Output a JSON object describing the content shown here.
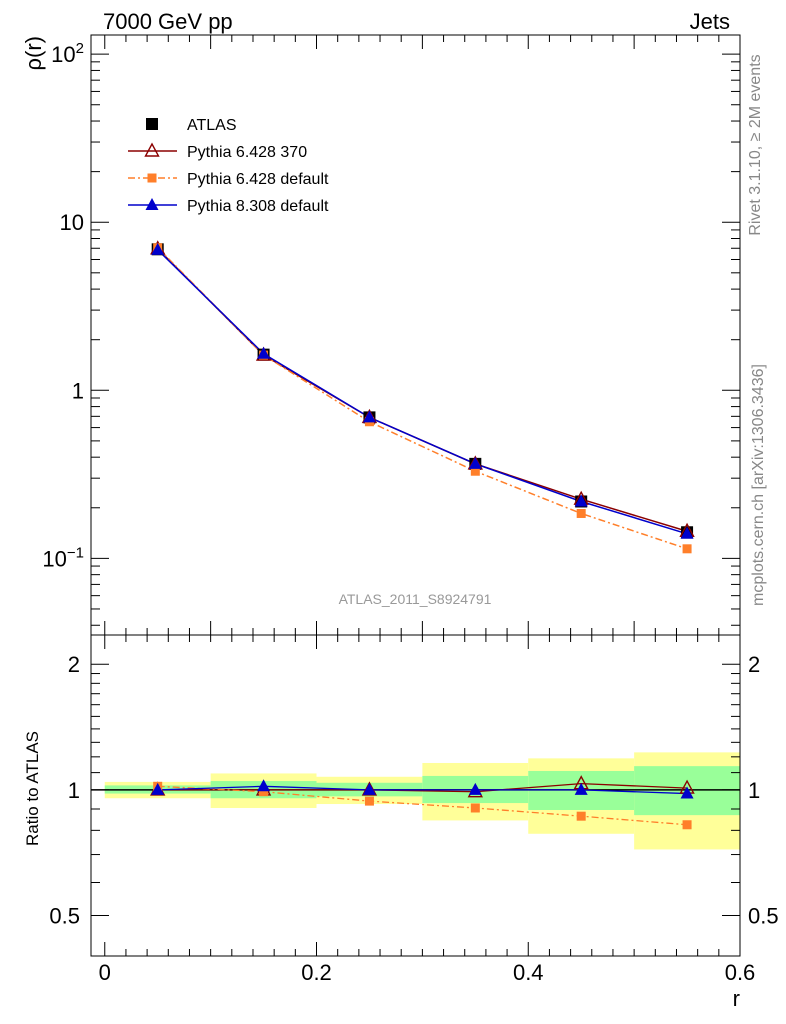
{
  "header": {
    "left_label": "7000 GeV pp",
    "right_label": "Jets"
  },
  "side_labels": {
    "rivet": "Rivet 3.1.10, ≥ 2M events",
    "mcplots": "mcplots.cern.ch [arXiv:1306.3436]"
  },
  "analysis_label": "ATLAS_2011_S8924791",
  "chart_data": [
    {
      "type": "line",
      "panel": "main",
      "ylabel": "ρ(r)",
      "yscale": "log",
      "ylim": [
        0.035,
        130
      ],
      "xlim": [
        -0.013,
        0.6
      ],
      "ytick_labels": [
        {
          "value": 100,
          "base": "10",
          "exp": "2"
        },
        {
          "value": 10,
          "base": "10",
          "exp": ""
        },
        {
          "value": 1,
          "base": "1",
          "exp": ""
        },
        {
          "value": 0.1,
          "base": "10",
          "exp": "−1"
        }
      ],
      "legend_position": "top-left",
      "x": [
        0.05,
        0.15,
        0.25,
        0.35,
        0.45,
        0.55
      ],
      "series": [
        {
          "name": "ATLAS",
          "color": "#000000",
          "marker": "square",
          "line": "none",
          "values": [
            6.9,
            1.63,
            0.69,
            0.365,
            0.218,
            0.143
          ]
        },
        {
          "name": "Pythia 6.428 370",
          "color": "#8b0000",
          "marker": "triangle-open",
          "line": "solid",
          "values": [
            6.95,
            1.62,
            0.69,
            0.365,
            0.225,
            0.145
          ]
        },
        {
          "name": "Pythia 6.428 default",
          "color": "#ff7f2a",
          "marker": "square-small",
          "line": "dashdot",
          "values": [
            7.05,
            1.62,
            0.65,
            0.33,
            0.185,
            0.114
          ]
        },
        {
          "name": "Pythia 8.308 default",
          "color": "#0000cc",
          "marker": "triangle",
          "line": "solid",
          "values": [
            6.85,
            1.65,
            0.69,
            0.365,
            0.218,
            0.14
          ]
        }
      ]
    },
    {
      "type": "line",
      "panel": "ratio",
      "ylabel": "Ratio to ATLAS",
      "xlabel": "r",
      "yscale": "log",
      "ylim": [
        0.4,
        2.35
      ],
      "xlim": [
        -0.013,
        0.6
      ],
      "ytick_labels": [
        {
          "value": 2,
          "label": "2"
        },
        {
          "value": 1,
          "label": "1"
        },
        {
          "value": 0.5,
          "label": "0.5"
        }
      ],
      "xtick_labels": [
        {
          "value": 0,
          "label": "0"
        },
        {
          "value": 0.2,
          "label": "0.2"
        },
        {
          "value": 0.4,
          "label": "0.4"
        },
        {
          "value": 0.6,
          "label": "0.6"
        }
      ],
      "bins": [
        {
          "lo": 0.0,
          "hi": 0.1,
          "band_inner": [
            0.98,
            1.025
          ],
          "band_outer": [
            0.955,
            1.045
          ]
        },
        {
          "lo": 0.1,
          "hi": 0.2,
          "band_inner": [
            0.955,
            1.05
          ],
          "band_outer": [
            0.905,
            1.095
          ]
        },
        {
          "lo": 0.2,
          "hi": 0.3,
          "band_inner": [
            0.965,
            1.04
          ],
          "band_outer": [
            0.925,
            1.075
          ]
        },
        {
          "lo": 0.3,
          "hi": 0.4,
          "band_inner": [
            0.93,
            1.08
          ],
          "band_outer": [
            0.845,
            1.16
          ]
        },
        {
          "lo": 0.4,
          "hi": 0.5,
          "band_inner": [
            0.895,
            1.11
          ],
          "band_outer": [
            0.785,
            1.19
          ]
        },
        {
          "lo": 0.5,
          "hi": 0.6,
          "band_inner": [
            0.87,
            1.14
          ],
          "band_outer": [
            0.72,
            1.23
          ]
        }
      ],
      "x": [
        0.05,
        0.15,
        0.25,
        0.35,
        0.45,
        0.55
      ],
      "series": [
        {
          "name": "Pythia 6.428 370",
          "color": "#8b0000",
          "marker": "triangle-open",
          "line": "solid",
          "values": [
            1.0,
            1.0,
            1.0,
            0.99,
            1.035,
            1.01
          ]
        },
        {
          "name": "Pythia 6.428 default",
          "color": "#ff7f2a",
          "marker": "square-small",
          "line": "dashdot",
          "values": [
            1.02,
            0.99,
            0.94,
            0.905,
            0.865,
            0.825
          ]
        },
        {
          "name": "Pythia 8.308 default",
          "color": "#0000cc",
          "marker": "triangle",
          "line": "solid",
          "values": [
            1.0,
            1.02,
            1.0,
            1.0,
            1.0,
            0.98
          ]
        }
      ],
      "reference_line": 1.0,
      "band_colors": {
        "inner": "#99ff99",
        "outer": "#ffff99"
      }
    }
  ]
}
